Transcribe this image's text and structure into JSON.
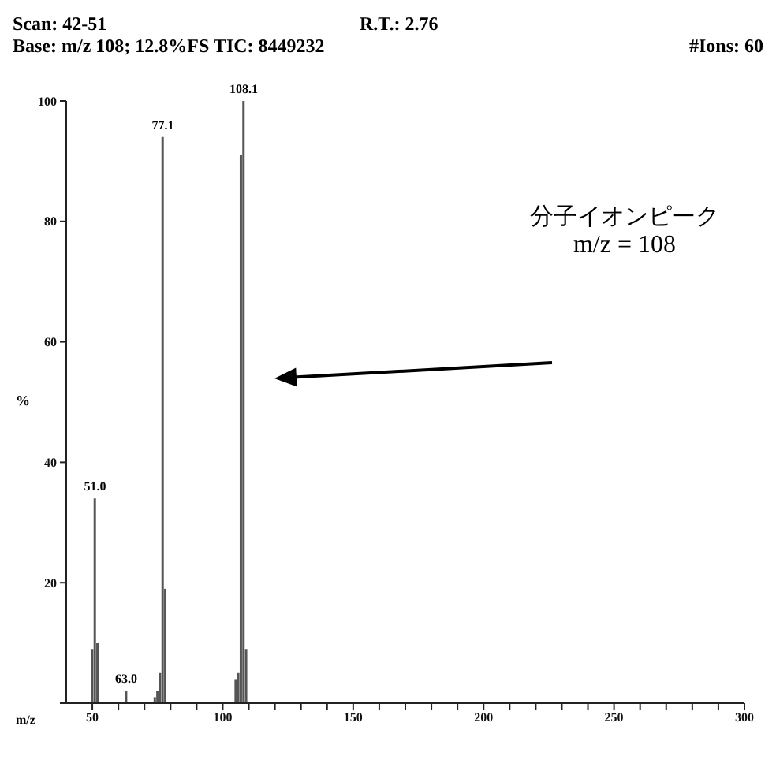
{
  "chart_data": {
    "type": "bar",
    "xlabel": "m/z",
    "ylabel": "%",
    "x": [
      50,
      51,
      52,
      63,
      74,
      75,
      76,
      77,
      78,
      105,
      106,
      107,
      108,
      109
    ],
    "values": [
      9,
      34,
      10,
      2,
      1,
      2,
      5,
      94,
      19,
      4,
      5,
      91,
      100,
      9
    ],
    "color": "#555555",
    "xlim": [
      40,
      300
    ],
    "xticks": [
      50,
      {
        "value": 60,
        "label": null
      },
      {
        "value": 70,
        "label": null
      },
      {
        "value": 80,
        "label": null
      },
      {
        "value": 90,
        "label": null
      },
      100,
      {
        "value": 110,
        "label": null
      },
      {
        "value": 120,
        "label": null
      },
      {
        "value": 130,
        "label": null
      },
      {
        "value": 140,
        "label": null
      },
      150,
      {
        "value": 160,
        "label": null
      },
      {
        "value": 170,
        "label": null
      },
      {
        "value": 180,
        "label": null
      },
      {
        "value": 190,
        "label": null
      },
      200,
      {
        "value": 210,
        "label": null
      },
      {
        "value": 220,
        "label": null
      },
      {
        "value": 230,
        "label": null
      },
      {
        "value": 240,
        "label": null
      },
      250,
      {
        "value": 260,
        "label": null
      },
      {
        "value": 270,
        "label": null
      },
      {
        "value": 280,
        "label": null
      },
      {
        "value": 290,
        "label": null
      },
      300
    ],
    "ylim": [
      0,
      100
    ],
    "yticks": [
      {
        "value": 0,
        "label": null
      },
      20,
      40,
      60,
      80,
      100
    ],
    "grid": false,
    "annotations": [
      "Scan: 42-51",
      "R.T.: 2.76",
      "Base: m/z 108; 12.8%FS  TIC: 8449232",
      "#Ions: 60",
      "分子イオンピーク",
      "m/z = 108",
      {
        "text": "51.0",
        "x": 51,
        "y": 34
      },
      {
        "text": "63.0",
        "x": 63,
        "y": 2
      },
      {
        "text": "77.1",
        "x": 77,
        "y": 94
      },
      {
        "text": "108.1",
        "x": 108,
        "y": 100
      }
    ]
  }
}
